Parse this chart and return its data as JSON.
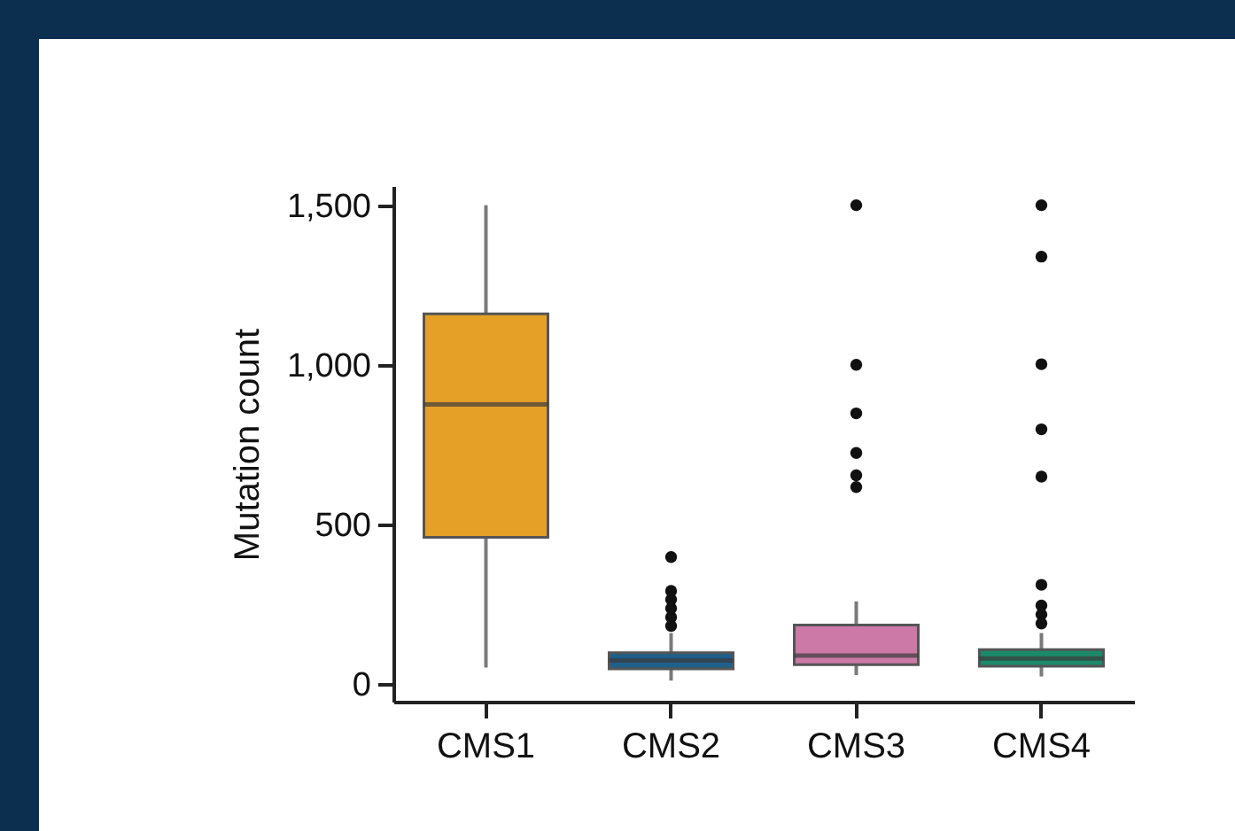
{
  "chart_data": {
    "type": "box",
    "ylabel": "Mutation count",
    "categories": [
      "CMS1",
      "CMS2",
      "CMS3",
      "CMS4"
    ],
    "colors": [
      "#e5a028",
      "#1f5f8b",
      "#cc79a7",
      "#1b8a6b"
    ],
    "boxes": [
      {
        "low": 52,
        "q1": 460,
        "median": 876,
        "q3": 1160,
        "high": 1500
      },
      {
        "low": 11,
        "q1": 48,
        "median": 74,
        "q3": 98,
        "high": 160,
        "outliers": [
          398,
          292,
          265,
          237,
          209,
          182
        ]
      },
      {
        "low": 28,
        "q1": 61,
        "median": 89,
        "q3": 185,
        "high": 259,
        "outliers": [
          1500,
          1000,
          848,
          724,
          654,
          617
        ]
      },
      {
        "low": 24,
        "q1": 56,
        "median": 80,
        "q3": 108,
        "high": 160,
        "outliers": [
          1500,
          1339,
          1002,
          798,
          650,
          311,
          246,
          218,
          190
        ]
      }
    ],
    "ylim": [
      -55,
      1560
    ],
    "yticks": [
      {
        "value": 0,
        "label": "0"
      },
      {
        "value": 500,
        "label": "500"
      },
      {
        "value": 1000,
        "label": "1,000"
      },
      {
        "value": 1500,
        "label": "1,500"
      }
    ]
  }
}
